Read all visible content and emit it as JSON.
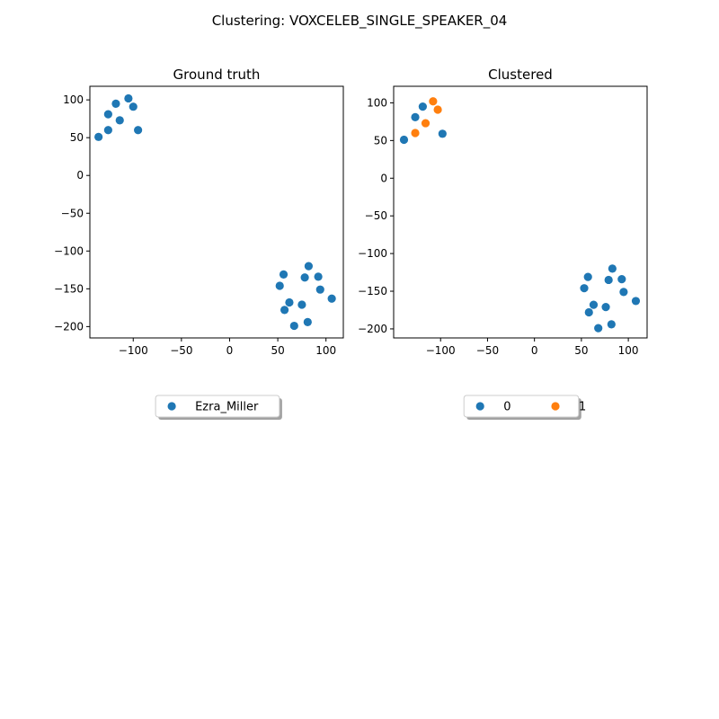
{
  "figure": {
    "suptitle": "Clustering: VOXCELEB_SINGLE_SPEAKER_04"
  },
  "colors": {
    "c0": "#1f77b4",
    "c1": "#ff7f0e"
  },
  "chart_data": [
    {
      "type": "scatter",
      "title": "Ground truth",
      "xlabel": "",
      "ylabel": "",
      "xlim": [
        -145,
        118
      ],
      "ylim": [
        -215,
        118
      ],
      "xticks": [
        -100,
        -50,
        0,
        50,
        100
      ],
      "yticks": [
        100,
        50,
        0,
        -50,
        -100,
        -150,
        -200
      ],
      "legend": {
        "placement": "below",
        "columns": 1
      },
      "series": [
        {
          "name": "Ezra_Miller",
          "color": "#1f77b4",
          "x": [
            -105,
            -100,
            -118,
            -126,
            -114,
            -126,
            -95,
            -136,
            82,
            56,
            92,
            78,
            52,
            94,
            106,
            62,
            57,
            75,
            81,
            67
          ],
          "y": [
            102,
            91,
            95,
            81,
            73,
            60,
            60,
            51,
            -120,
            -131,
            -134,
            -135,
            -146,
            -151,
            -163,
            -168,
            -178,
            -171,
            -194,
            -199
          ]
        }
      ]
    },
    {
      "type": "scatter",
      "title": "Clustered",
      "xlabel": "",
      "ylabel": "",
      "xlim": [
        -150,
        120
      ],
      "ylim": [
        -212,
        122
      ],
      "xticks": [
        -100,
        -50,
        0,
        50,
        100
      ],
      "yticks": [
        100,
        50,
        0,
        -50,
        -100,
        -150,
        -200
      ],
      "legend": {
        "placement": "below",
        "columns": 2
      },
      "series": [
        {
          "name": "0",
          "color": "#1f77b4",
          "x": [
            -119,
            -127,
            -139,
            -98,
            83,
            57,
            93,
            79,
            53,
            95,
            108,
            63,
            58,
            76,
            82,
            68
          ],
          "y": [
            95,
            81,
            51,
            59,
            -120,
            -131,
            -134,
            -135,
            -146,
            -151,
            -163,
            -168,
            -178,
            -171,
            -194,
            -199
          ]
        },
        {
          "name": "1",
          "color": "#ff7f0e",
          "x": [
            -108,
            -103,
            -116,
            -127
          ],
          "y": [
            102,
            91,
            73,
            60
          ]
        }
      ]
    }
  ]
}
